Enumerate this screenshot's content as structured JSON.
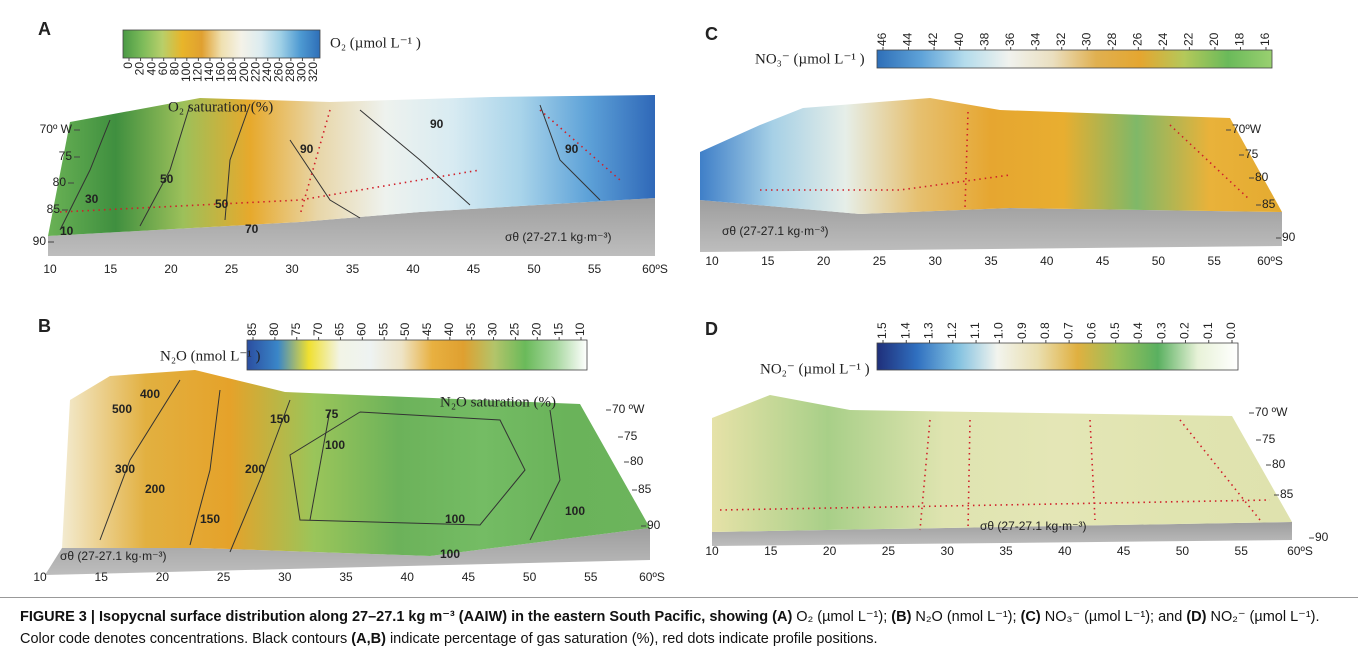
{
  "panels": [
    {
      "label": "A",
      "colorbar_label": "O₂ (µmol L⁻¹ )",
      "colorbar_ticks": [
        "0",
        "20",
        "40",
        "60",
        "80",
        "100",
        "120",
        "140",
        "160",
        "180",
        "200",
        "220",
        "240",
        "260",
        "280",
        "300",
        "320"
      ],
      "annotation": "O₂ saturation (%)",
      "sigma_label": "σθ (27-27.1 kg·m⁻³)",
      "x_ticks": [
        "10",
        "15",
        "20",
        "25",
        "30",
        "35",
        "40",
        "45",
        "50",
        "55",
        "60ºS"
      ],
      "y_ticks": [
        "70º W",
        "75",
        "80",
        "85",
        "90"
      ],
      "contour_labels": [
        "10",
        "30",
        "50",
        "50",
        "70",
        "90",
        "90",
        "90"
      ]
    },
    {
      "label": "B",
      "colorbar_label": "N₂O (nmol L⁻¹ )",
      "colorbar_ticks": [
        "85",
        "80",
        "75",
        "70",
        "65",
        "60",
        "55",
        "50",
        "45",
        "40",
        "35",
        "30",
        "25",
        "20",
        "15",
        "10"
      ],
      "annotation": "N₂O saturation (%)",
      "sigma_label": "σθ (27-27.1 kg·m⁻³)",
      "x_ticks": [
        "10",
        "15",
        "20",
        "25",
        "30",
        "35",
        "40",
        "45",
        "50",
        "55",
        "60ºS"
      ],
      "y_ticks": [
        "70 ºW",
        "75",
        "80",
        "85",
        "90"
      ],
      "contour_labels": [
        "500",
        "400",
        "300",
        "200",
        "200",
        "150",
        "150",
        "100",
        "75",
        "100",
        "100",
        "100"
      ]
    },
    {
      "label": "C",
      "colorbar_label": "NO₃⁻ (µmol L⁻¹ )",
      "colorbar_ticks": [
        "46",
        "44",
        "42",
        "40",
        "38",
        "36",
        "34",
        "32",
        "30",
        "28",
        "26",
        "24",
        "22",
        "20",
        "18",
        "16"
      ],
      "sigma_label": "σθ (27-27.1 kg·m⁻³)",
      "x_ticks": [
        "10",
        "15",
        "20",
        "25",
        "30",
        "35",
        "40",
        "45",
        "50",
        "55",
        "60ºS"
      ],
      "y_ticks": [
        "70ºW",
        "75",
        "80",
        "85",
        "90"
      ]
    },
    {
      "label": "D",
      "colorbar_label": "NO₂⁻ (µmol L⁻¹ )",
      "colorbar_ticks": [
        "1.5",
        "1.4",
        "1.3",
        "1.2",
        "1.1",
        "1.0",
        "0.9",
        "0.8",
        "0.7",
        "0.6",
        "0.5",
        "0.4",
        "0.3",
        "0.2",
        "0.1",
        "0.0"
      ],
      "sigma_label": "σθ (27-27.1 kg·m⁻³)",
      "x_ticks": [
        "10",
        "15",
        "20",
        "25",
        "30",
        "35",
        "40",
        "45",
        "50",
        "55",
        "60ºS"
      ],
      "y_ticks": [
        "70 ºW",
        "75",
        "80",
        "85",
        "90"
      ]
    }
  ],
  "caption": {
    "parts": [
      "FIGURE 3 | Isopycnal surface distribution along 27–27.1 kg m⁻³ (AAIW) in the eastern South Pacific, showing (A)",
      " O₂ (µmol L⁻¹); ",
      "(B)",
      " N₂O (nmol L⁻¹); ",
      "(C)",
      " NO₃⁻ (µmol L⁻¹); and ",
      "(D)",
      " NO₂⁻ (µmol L⁻¹). Color code denotes concentrations. Black contours ",
      "(A,B)",
      " indicate percentage of gas saturation (%), red dots indicate profile positions."
    ]
  }
}
